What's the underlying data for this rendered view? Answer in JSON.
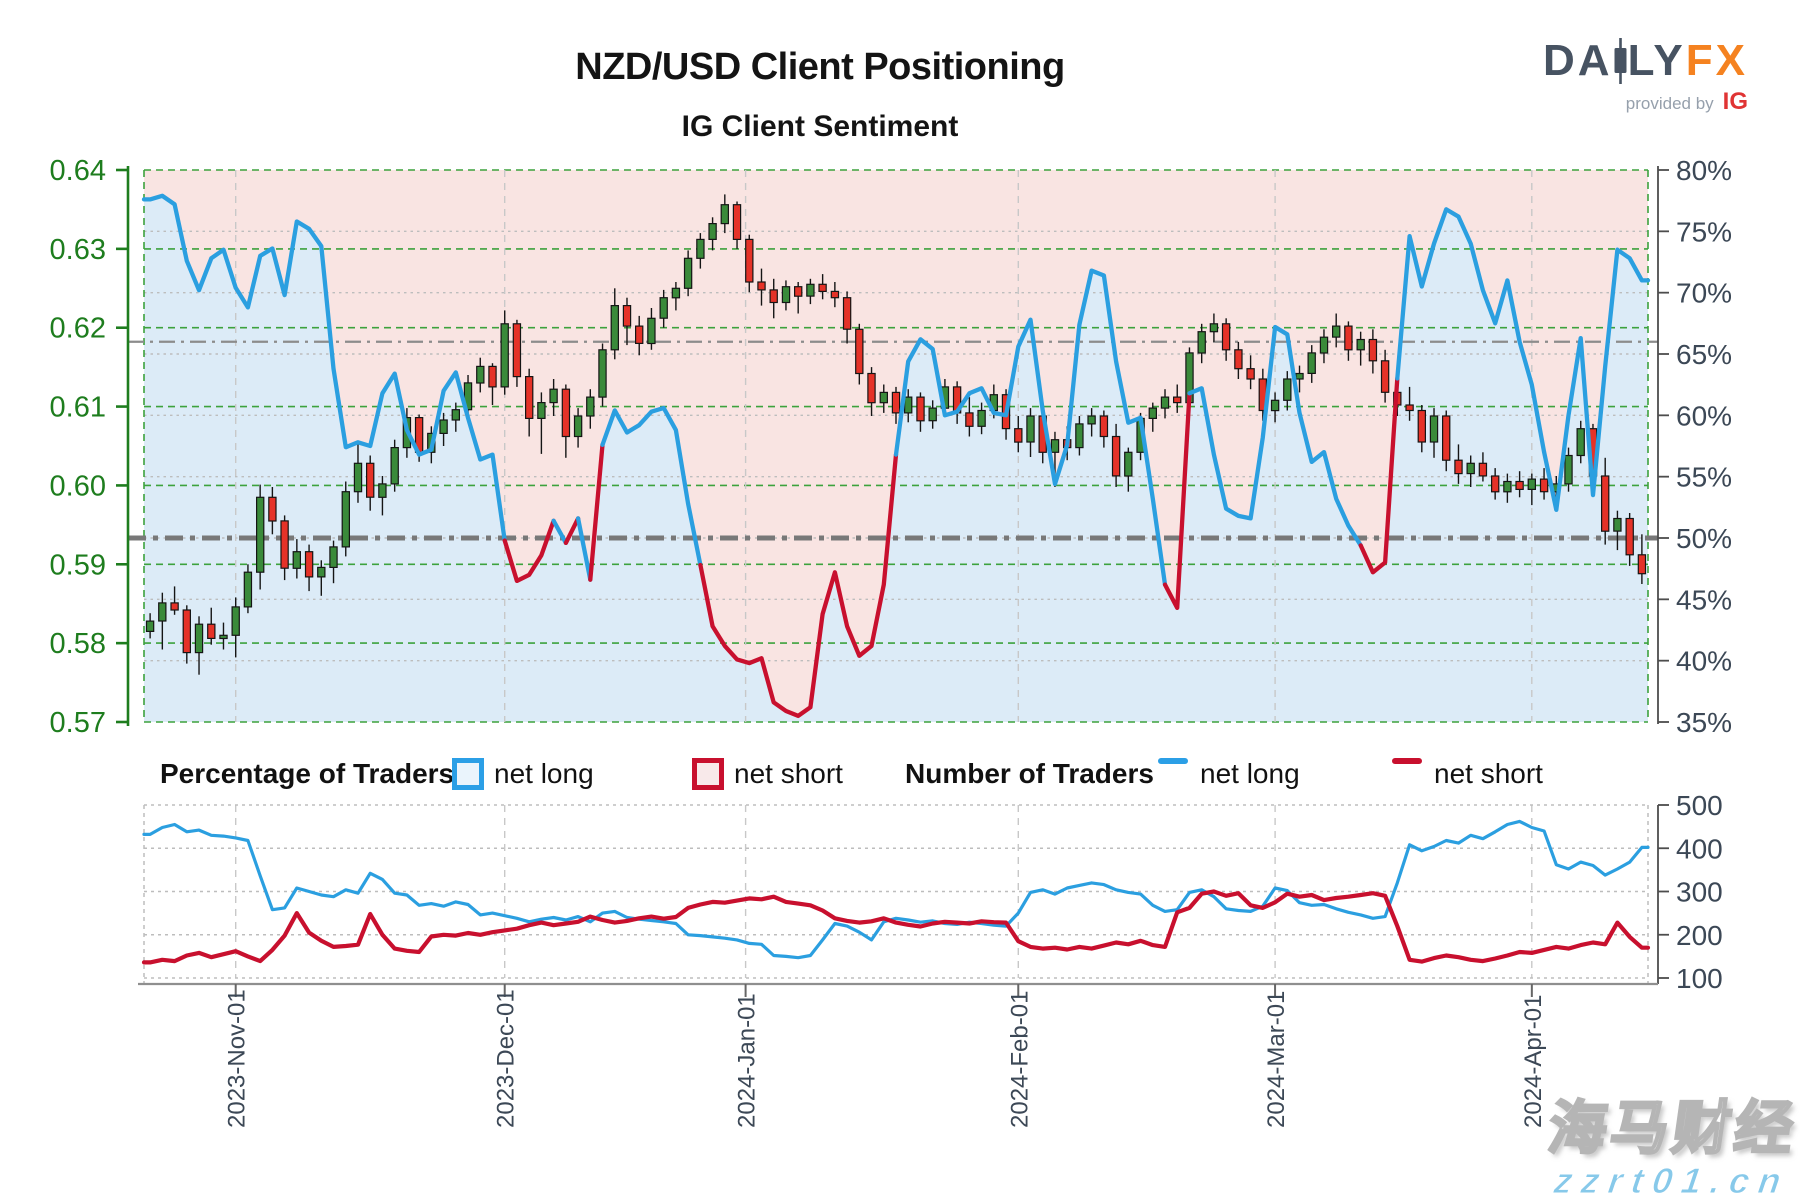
{
  "header": {
    "title": "NZD/USD Client Positioning",
    "subtitle": "IG Client Sentiment"
  },
  "logo": {
    "brand_da": "DA",
    "brand_ly": "LY",
    "brand_fx": "FX",
    "provided_by": "provided by",
    "ig": "IG"
  },
  "legend": {
    "pct_title": "Percentage of Traders",
    "pct_net_long": "net long",
    "pct_net_short": "net short",
    "count_title": "Number of Traders",
    "count_net_long": "net long",
    "count_net_short": "net short"
  },
  "watermark": {
    "line1": "海马财经",
    "line2": "zzrt01.cn"
  },
  "colors": {
    "bg_above_line": "#f9e4e2",
    "bg_below_line": "#dcebf7",
    "net_long_line": "#2b9fe0",
    "net_short_line": "#c8102e",
    "candle_up": "#3a8a3a",
    "candle_down": "#e53228",
    "candle_stroke": "#151515",
    "grid_green": "#3da23d",
    "grid_gray": "#bdbdbd",
    "month_grid": "#c8c8c8",
    "ref_thin": "#8c8c8c",
    "ref_thick": "#787878",
    "axis_green": "#1e7d1e",
    "axis_gray": "#4d4d4d",
    "axis_bottom": "#8f8f8f"
  },
  "chart_data": {
    "type": [
      "candlestick",
      "line"
    ],
    "title": "NZD/USD Client Positioning",
    "subtitle": "IG Client Sentiment",
    "price_axis": {
      "min": 0.57,
      "max": 0.64,
      "ticks": [
        "0.64",
        "0.63",
        "0.62",
        "0.61",
        "0.60",
        "0.59",
        "0.58",
        "0.57"
      ]
    },
    "pct_axis": {
      "min": 35,
      "max": 80,
      "suffix": "%",
      "ticks": [
        80,
        75,
        70,
        65,
        60,
        55,
        50,
        45,
        40,
        35
      ],
      "gridlines": [
        75,
        70,
        65,
        60,
        55,
        50,
        45,
        40
      ]
    },
    "count_axis": {
      "min": 100,
      "max": 500,
      "ticks": [
        500,
        400,
        300,
        200,
        100
      ]
    },
    "months": [
      {
        "label": "2023-Nov-01",
        "i": 7
      },
      {
        "label": "2023-Dec-01",
        "i": 29
      },
      {
        "label": "2024-Jan-01",
        "i": 48.7
      },
      {
        "label": "2024-Feb-01",
        "i": 71
      },
      {
        "label": "2024-Mar-01",
        "i": 92
      },
      {
        "label": "2024-Apr-01",
        "i": 113
      }
    ],
    "ref_lines": {
      "pct_thin": 66,
      "pct_thick": 50
    },
    "candles": [
      [
        0.5815,
        0.5838,
        0.5806,
        0.5828
      ],
      [
        0.5828,
        0.5864,
        0.5792,
        0.5851
      ],
      [
        0.5851,
        0.5872,
        0.5836,
        0.5842
      ],
      [
        0.5842,
        0.5848,
        0.5774,
        0.5788
      ],
      [
        0.5788,
        0.5834,
        0.576,
        0.5824
      ],
      [
        0.5824,
        0.5845,
        0.5798,
        0.5806
      ],
      [
        0.5806,
        0.5826,
        0.5792,
        0.581
      ],
      [
        0.581,
        0.5858,
        0.5782,
        0.5846
      ],
      [
        0.5846,
        0.59,
        0.5838,
        0.589
      ],
      [
        0.589,
        0.6001,
        0.5868,
        0.5985
      ],
      [
        0.5985,
        0.5998,
        0.5938,
        0.5955
      ],
      [
        0.5955,
        0.5962,
        0.588,
        0.5895
      ],
      [
        0.5895,
        0.5932,
        0.5882,
        0.5916
      ],
      [
        0.5916,
        0.5925,
        0.5866,
        0.5884
      ],
      [
        0.5884,
        0.5905,
        0.586,
        0.5896
      ],
      [
        0.5896,
        0.593,
        0.5876,
        0.5922
      ],
      [
        0.5922,
        0.6005,
        0.591,
        0.5992
      ],
      [
        0.5992,
        0.6055,
        0.5978,
        0.6028
      ],
      [
        0.6028,
        0.6038,
        0.5968,
        0.5985
      ],
      [
        0.5985,
        0.6012,
        0.5962,
        0.6002
      ],
      [
        0.6002,
        0.6058,
        0.5992,
        0.6048
      ],
      [
        0.6048,
        0.6098,
        0.6035,
        0.6086
      ],
      [
        0.6086,
        0.609,
        0.603,
        0.6042
      ],
      [
        0.6042,
        0.6075,
        0.6028,
        0.6066
      ],
      [
        0.6066,
        0.6092,
        0.605,
        0.6083
      ],
      [
        0.6083,
        0.6105,
        0.6068,
        0.6096
      ],
      [
        0.6096,
        0.614,
        0.6085,
        0.613
      ],
      [
        0.613,
        0.6162,
        0.6118,
        0.6151
      ],
      [
        0.6151,
        0.6155,
        0.6102,
        0.6125
      ],
      [
        0.6125,
        0.6222,
        0.6115,
        0.6205
      ],
      [
        0.6205,
        0.621,
        0.6125,
        0.6138
      ],
      [
        0.6138,
        0.6148,
        0.6062,
        0.6085
      ],
      [
        0.6085,
        0.6118,
        0.604,
        0.6105
      ],
      [
        0.6105,
        0.6135,
        0.6088,
        0.6122
      ],
      [
        0.6122,
        0.6128,
        0.6035,
        0.6062
      ],
      [
        0.6062,
        0.6098,
        0.6048,
        0.6088
      ],
      [
        0.6088,
        0.6122,
        0.6072,
        0.6112
      ],
      [
        0.6112,
        0.618,
        0.61,
        0.6172
      ],
      [
        0.6172,
        0.625,
        0.616,
        0.6228
      ],
      [
        0.6228,
        0.6238,
        0.6178,
        0.6202
      ],
      [
        0.6202,
        0.6215,
        0.6165,
        0.618
      ],
      [
        0.618,
        0.6225,
        0.6172,
        0.6212
      ],
      [
        0.6212,
        0.6248,
        0.62,
        0.6238
      ],
      [
        0.6238,
        0.6258,
        0.6222,
        0.625
      ],
      [
        0.625,
        0.6298,
        0.624,
        0.6288
      ],
      [
        0.6288,
        0.632,
        0.6275,
        0.6312
      ],
      [
        0.6312,
        0.634,
        0.6298,
        0.6332
      ],
      [
        0.6332,
        0.6369,
        0.632,
        0.6356
      ],
      [
        0.6356,
        0.636,
        0.63,
        0.6312
      ],
      [
        0.6312,
        0.6318,
        0.6245,
        0.6258
      ],
      [
        0.6258,
        0.6275,
        0.6228,
        0.6248
      ],
      [
        0.6248,
        0.6262,
        0.6212,
        0.6232
      ],
      [
        0.6232,
        0.626,
        0.6222,
        0.6252
      ],
      [
        0.6252,
        0.6258,
        0.6218,
        0.624
      ],
      [
        0.624,
        0.6262,
        0.623,
        0.6255
      ],
      [
        0.6255,
        0.6268,
        0.6236,
        0.6246
      ],
      [
        0.6246,
        0.6258,
        0.6226,
        0.6238
      ],
      [
        0.6238,
        0.6246,
        0.618,
        0.6198
      ],
      [
        0.6198,
        0.6205,
        0.6128,
        0.6142
      ],
      [
        0.6142,
        0.615,
        0.6088,
        0.6105
      ],
      [
        0.6105,
        0.6128,
        0.6092,
        0.6118
      ],
      [
        0.6118,
        0.6125,
        0.6078,
        0.6092
      ],
      [
        0.6092,
        0.6122,
        0.608,
        0.6112
      ],
      [
        0.6112,
        0.6118,
        0.6068,
        0.6082
      ],
      [
        0.6082,
        0.6108,
        0.6072,
        0.6098
      ],
      [
        0.6098,
        0.6135,
        0.6088,
        0.6125
      ],
      [
        0.6125,
        0.6132,
        0.6078,
        0.6092
      ],
      [
        0.6092,
        0.6112,
        0.6062,
        0.6075
      ],
      [
        0.6075,
        0.6105,
        0.6065,
        0.6095
      ],
      [
        0.6095,
        0.6128,
        0.6085,
        0.6115
      ],
      [
        0.6115,
        0.6122,
        0.6058,
        0.6072
      ],
      [
        0.6072,
        0.6088,
        0.6042,
        0.6055
      ],
      [
        0.6055,
        0.6098,
        0.6036,
        0.6088
      ],
      [
        0.6088,
        0.6092,
        0.6028,
        0.6042
      ],
      [
        0.6042,
        0.6068,
        0.5998,
        0.6058
      ],
      [
        0.6058,
        0.6075,
        0.6032,
        0.6048
      ],
      [
        0.6048,
        0.6088,
        0.6038,
        0.6078
      ],
      [
        0.6078,
        0.6098,
        0.6062,
        0.6088
      ],
      [
        0.6088,
        0.6095,
        0.6048,
        0.6062
      ],
      [
        0.6062,
        0.6078,
        0.5998,
        0.6012
      ],
      [
        0.6012,
        0.6048,
        0.5992,
        0.6042
      ],
      [
        0.6042,
        0.6092,
        0.6032,
        0.6085
      ],
      [
        0.6085,
        0.6105,
        0.6068,
        0.6098
      ],
      [
        0.6098,
        0.6122,
        0.6085,
        0.6112
      ],
      [
        0.6112,
        0.6128,
        0.6092,
        0.6105
      ],
      [
        0.6105,
        0.6175,
        0.6098,
        0.6168
      ],
      [
        0.6168,
        0.6205,
        0.6155,
        0.6195
      ],
      [
        0.6195,
        0.6218,
        0.6182,
        0.6205
      ],
      [
        0.6205,
        0.6212,
        0.6158,
        0.6172
      ],
      [
        0.6172,
        0.6182,
        0.6135,
        0.6148
      ],
      [
        0.6148,
        0.6165,
        0.6122,
        0.6135
      ],
      [
        0.6135,
        0.6148,
        0.6082,
        0.6095
      ],
      [
        0.6095,
        0.6118,
        0.608,
        0.6108
      ],
      [
        0.6108,
        0.6145,
        0.6095,
        0.6135
      ],
      [
        0.6135,
        0.6152,
        0.6118,
        0.6142
      ],
      [
        0.6142,
        0.6178,
        0.613,
        0.6168
      ],
      [
        0.6168,
        0.6198,
        0.6155,
        0.6188
      ],
      [
        0.6188,
        0.6218,
        0.6175,
        0.6202
      ],
      [
        0.6202,
        0.6208,
        0.6158,
        0.6172
      ],
      [
        0.6172,
        0.6195,
        0.6152,
        0.6185
      ],
      [
        0.6185,
        0.6198,
        0.6142,
        0.6158
      ],
      [
        0.6158,
        0.6172,
        0.6105,
        0.6118
      ],
      [
        0.6118,
        0.6135,
        0.6088,
        0.6102
      ],
      [
        0.6102,
        0.6125,
        0.6082,
        0.6095
      ],
      [
        0.6095,
        0.6102,
        0.6042,
        0.6055
      ],
      [
        0.6055,
        0.6098,
        0.6035,
        0.6088
      ],
      [
        0.6088,
        0.6095,
        0.6018,
        0.6032
      ],
      [
        0.6032,
        0.6052,
        0.6002,
        0.6015
      ],
      [
        0.6015,
        0.6038,
        0.5998,
        0.6028
      ],
      [
        0.6028,
        0.6042,
        0.6005,
        0.6012
      ],
      [
        0.6012,
        0.6022,
        0.5982,
        0.5992
      ],
      [
        0.5992,
        0.6015,
        0.5978,
        0.6005
      ],
      [
        0.6005,
        0.6018,
        0.5985,
        0.5995
      ],
      [
        0.5995,
        0.6015,
        0.5975,
        0.6008
      ],
      [
        0.6008,
        0.6022,
        0.5982,
        0.5992
      ],
      [
        0.5992,
        0.6012,
        0.5968,
        0.6002
      ],
      [
        0.6002,
        0.6048,
        0.5992,
        0.6038
      ],
      [
        0.6038,
        0.6082,
        0.6028,
        0.6072
      ],
      [
        0.6072,
        0.6078,
        0.5998,
        0.6012
      ],
      [
        0.6012,
        0.6035,
        0.5925,
        0.5942
      ],
      [
        0.5942,
        0.5968,
        0.5918,
        0.5958
      ],
      [
        0.5958,
        0.5965,
        0.5898,
        0.5912
      ],
      [
        0.5912,
        0.5938,
        0.5875,
        0.5888
      ]
    ],
    "net_long_pct": [
      77.6,
      77.9,
      77.2,
      72.6,
      70.2,
      72.8,
      73.5,
      70.4,
      68.8,
      73.0,
      73.6,
      69.8,
      75.8,
      75.2,
      73.8,
      63.8,
      57.4,
      57.8,
      57.5,
      61.8,
      63.4,
      58.8,
      56.8,
      57.2,
      62.0,
      63.5,
      59.8,
      56.4,
      56.8,
      49.8,
      46.5,
      47.0,
      48.6,
      51.4,
      49.6,
      51.6,
      46.6,
      57.6,
      60.4,
      58.6,
      59.2,
      60.3,
      60.6,
      58.8,
      52.8,
      47.8,
      42.8,
      41.2,
      40.1,
      39.8,
      40.2,
      36.6,
      35.9,
      35.5,
      36.2,
      43.8,
      47.2,
      42.8,
      40.4,
      41.2,
      46.2,
      56.8,
      64.4,
      66.2,
      65.4,
      60.0,
      60.3,
      61.8,
      62.2,
      60.2,
      60.0,
      65.6,
      67.8,
      60.4,
      54.4,
      57.6,
      67.4,
      71.8,
      71.4,
      64.4,
      59.4,
      59.8,
      53.2,
      46.2,
      44.3,
      61.8,
      62.2,
      56.8,
      52.4,
      51.8,
      51.6,
      58.2,
      67.2,
      66.6,
      60.2,
      56.2,
      57.0,
      53.2,
      51.0,
      49.4,
      47.2,
      48.0,
      63.0,
      74.6,
      70.5,
      74.0,
      76.8,
      76.2,
      74.0,
      70.2,
      67.5,
      71.0,
      66.0,
      62.5,
      57.0,
      52.3,
      60.0,
      66.3,
      53.5,
      64.0,
      73.5,
      72.8,
      71.0
    ],
    "traders": {
      "net_long": [
        432,
        448,
        455,
        438,
        442,
        430,
        428,
        424,
        418,
        336,
        258,
        262,
        308,
        300,
        292,
        288,
        304,
        296,
        342,
        328,
        296,
        292,
        268,
        272,
        266,
        276,
        270,
        246,
        250,
        244,
        238,
        230,
        236,
        240,
        234,
        242,
        230,
        250,
        254,
        240,
        236,
        233,
        230,
        226,
        200,
        198,
        195,
        192,
        188,
        180,
        178,
        152,
        150,
        147,
        152,
        188,
        226,
        220,
        206,
        188,
        230,
        238,
        234,
        229,
        232,
        226,
        224,
        229,
        226,
        222,
        220,
        250,
        298,
        304,
        294,
        308,
        314,
        320,
        316,
        304,
        298,
        294,
        268,
        254,
        258,
        298,
        304,
        288,
        260,
        256,
        254,
        266,
        308,
        302,
        274,
        268,
        270,
        260,
        252,
        246,
        238,
        242,
        320,
        408,
        394,
        404,
        418,
        412,
        430,
        422,
        438,
        455,
        462,
        448,
        440,
        362,
        352,
        368,
        360,
        338,
        352,
        368,
        402
      ],
      "net_short": [
        136,
        142,
        139,
        152,
        158,
        148,
        155,
        162,
        150,
        139,
        165,
        198,
        250,
        205,
        186,
        172,
        174,
        177,
        248,
        200,
        168,
        163,
        160,
        196,
        200,
        198,
        204,
        200,
        206,
        210,
        214,
        222,
        228,
        222,
        226,
        230,
        242,
        234,
        228,
        232,
        238,
        242,
        237,
        241,
        262,
        270,
        276,
        274,
        279,
        284,
        282,
        288,
        276,
        272,
        268,
        256,
        238,
        232,
        228,
        231,
        238,
        228,
        223,
        219,
        226,
        230,
        228,
        226,
        231,
        229,
        228,
        185,
        172,
        168,
        170,
        166,
        172,
        168,
        175,
        182,
        178,
        186,
        176,
        172,
        252,
        262,
        295,
        300,
        290,
        296,
        268,
        262,
        275,
        295,
        288,
        292,
        280,
        285,
        288,
        292,
        296,
        290,
        220,
        142,
        138,
        146,
        152,
        148,
        142,
        139,
        145,
        152,
        160,
        158,
        165,
        172,
        168,
        176,
        182,
        178,
        228,
        195,
        170
      ]
    }
  }
}
